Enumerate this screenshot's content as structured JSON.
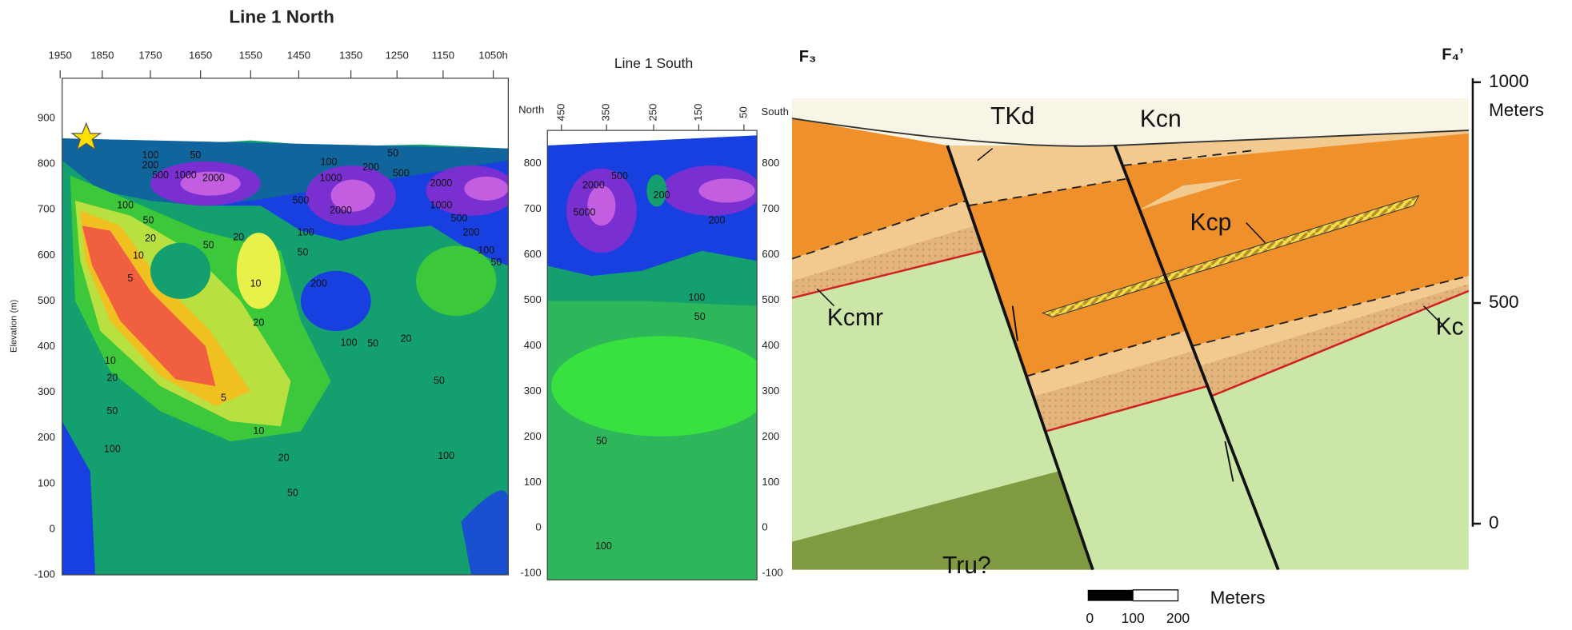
{
  "panels": [
    {
      "title": "Line 1 North",
      "y_axis_label": "Elevation (m)",
      "top_ticks": [
        "1950",
        "1850",
        "1750",
        "1650",
        "1550",
        "1450",
        "1350",
        "1250",
        "1150",
        "1050h"
      ],
      "left_ticks": [
        "900",
        "800",
        "700",
        "600",
        "500",
        "400",
        "300",
        "200",
        "100",
        "0",
        "-100"
      ],
      "contour_labels": [
        "100",
        "50",
        "200",
        "500",
        "1000",
        "2000",
        "100",
        "200",
        "500",
        "50",
        "1000",
        "2000",
        "500",
        "2000",
        "1000",
        "500",
        "200",
        "100",
        "50",
        "100",
        "50",
        "20",
        "10",
        "5",
        "20",
        "50",
        "10",
        "20",
        "50",
        "200",
        "100",
        "50",
        "20",
        "100",
        "10",
        "20",
        "5",
        "50",
        "50",
        "10",
        "20",
        "100",
        "100",
        "50"
      ]
    },
    {
      "title": "Line 1 South",
      "left_end": "North",
      "right_end": "South",
      "top_ticks": [
        "450",
        "350",
        "250",
        "150",
        "50"
      ],
      "left_ticks": [
        "800",
        "700",
        "600",
        "500",
        "400",
        "300",
        "200",
        "100",
        "0",
        "-100"
      ],
      "right_ticks": [
        "800",
        "700",
        "600",
        "500",
        "400",
        "300",
        "200",
        "100",
        "0",
        "-100"
      ],
      "contour_labels": [
        "2000",
        "500",
        "200",
        "5000",
        "200",
        "100",
        "50",
        "50",
        "100"
      ]
    }
  ],
  "cross_section": {
    "endpoints": [
      "F₃",
      "F₄’"
    ],
    "units": [
      "TKd",
      "Kcn",
      "Kcp",
      "Kcmr",
      "Kc",
      "Tru?"
    ],
    "scale": {
      "ticks": [
        "1000",
        "500",
        "0"
      ],
      "unit": "Meters"
    },
    "scale_bar": {
      "ticks": [
        "0",
        "100",
        "200"
      ],
      "unit": "Meters"
    }
  }
}
